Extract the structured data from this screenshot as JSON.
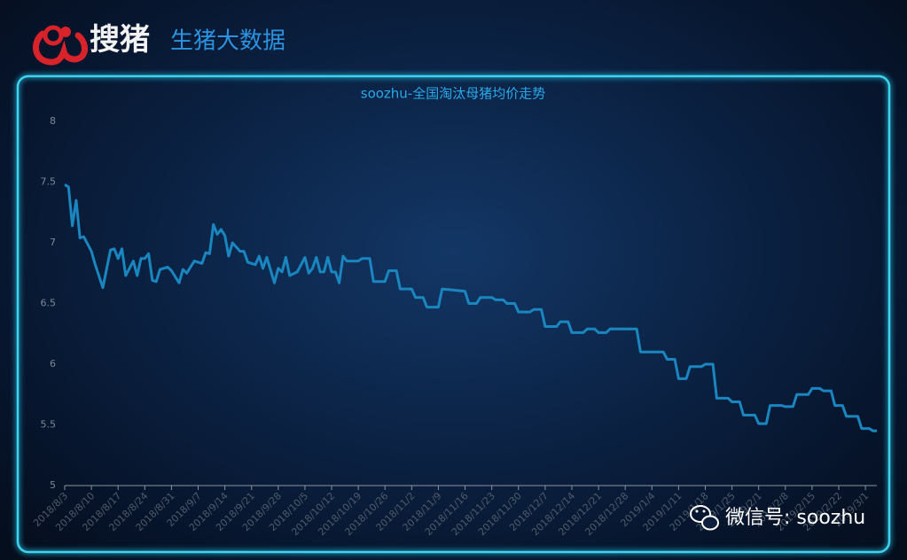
{
  "header": {
    "logo": "搜猪",
    "brand": "生猪大数据"
  },
  "watermark": "微信号: soozhu",
  "chart_data": {
    "type": "line",
    "title": "soozhu-全国淘汰母猪均价走势",
    "x": [
      "2018/8/3",
      "2018/8/4",
      "2018/8/5",
      "2018/8/6",
      "2018/8/7",
      "2018/8/8",
      "2018/8/10",
      "2018/8/11",
      "2018/8/13",
      "2018/8/15",
      "2018/8/16",
      "2018/8/17",
      "2018/8/18",
      "2018/8/19",
      "2018/8/21",
      "2018/8/22",
      "2018/8/23",
      "2018/8/24",
      "2018/8/25",
      "2018/8/26",
      "2018/8/27",
      "2018/8/28",
      "2018/8/30",
      "2018/8/31",
      "2018/9/2",
      "2018/9/3",
      "2018/9/4",
      "2018/9/6",
      "2018/9/7",
      "2018/9/8",
      "2018/9/9",
      "2018/9/10",
      "2018/9/11",
      "2018/9/12",
      "2018/9/13",
      "2018/9/14",
      "2018/9/15",
      "2018/9/16",
      "2018/9/18",
      "2018/9/19",
      "2018/9/20",
      "2018/9/22",
      "2018/9/23",
      "2018/9/24",
      "2018/9/25",
      "2018/9/27",
      "2018/9/28",
      "2018/9/29",
      "2018/9/30",
      "2018/10/1",
      "2018/10/3",
      "2018/10/5",
      "2018/10/6",
      "2018/10/7",
      "2018/10/8",
      "2018/10/9",
      "2018/10/10",
      "2018/10/11",
      "2018/10/12",
      "2018/10/13",
      "2018/10/14",
      "2018/10/15",
      "2018/10/16",
      "2018/10/19",
      "2018/10/20",
      "2018/10/22",
      "2018/10/23",
      "2018/10/26",
      "2018/10/27",
      "2018/10/29",
      "2018/10/30",
      "2018/11/2",
      "2018/11/3",
      "2018/11/5",
      "2018/11/6",
      "2018/11/9",
      "2018/11/10",
      "2018/11/13",
      "2018/11/16",
      "2018/11/17",
      "2018/11/19",
      "2018/11/20",
      "2018/11/23",
      "2018/11/24",
      "2018/11/26",
      "2018/11/27",
      "2018/11/29",
      "2018/11/30",
      "2018/12/3",
      "2018/12/4",
      "2018/12/6",
      "2018/12/7",
      "2018/12/10",
      "2018/12/11",
      "2018/12/13",
      "2018/12/14",
      "2018/12/17",
      "2018/12/18",
      "2018/12/20",
      "2018/12/21",
      "2018/12/23",
      "2018/12/24",
      "2018/12/31",
      "2019/1/1",
      "2019/1/7",
      "2019/1/8",
      "2019/1/10",
      "2019/1/11",
      "2019/1/13",
      "2019/1/14",
      "2019/1/17",
      "2019/1/18",
      "2019/1/20",
      "2019/1/21",
      "2019/1/24",
      "2019/1/25",
      "2019/1/27",
      "2019/1/28",
      "2019/1/31",
      "2019/2/1",
      "2019/2/3",
      "2019/2/4",
      "2019/2/7",
      "2019/2/8",
      "2019/2/10",
      "2019/2/11",
      "2019/2/14",
      "2019/2/15",
      "2019/2/17",
      "2019/2/18",
      "2019/2/20",
      "2019/2/21",
      "2019/2/23",
      "2019/2/24",
      "2019/2/27",
      "2019/2/28",
      "2019/3/2",
      "2019/3/3",
      "2019/3/4"
    ],
    "values": [
      7.48,
      7.46,
      7.14,
      7.35,
      7.04,
      7.05,
      6.93,
      6.82,
      6.63,
      6.94,
      6.95,
      6.87,
      6.95,
      6.73,
      6.85,
      6.73,
      6.87,
      6.87,
      6.91,
      6.69,
      6.68,
      6.78,
      6.8,
      6.77,
      6.67,
      6.78,
      6.75,
      6.85,
      6.84,
      6.83,
      6.92,
      6.91,
      7.15,
      7.07,
      7.11,
      7.06,
      6.89,
      7.0,
      6.93,
      6.93,
      6.84,
      6.82,
      6.89,
      6.79,
      6.88,
      6.67,
      6.79,
      6.76,
      6.88,
      6.73,
      6.76,
      6.88,
      6.75,
      6.79,
      6.88,
      6.76,
      6.76,
      6.88,
      6.76,
      6.76,
      6.67,
      6.89,
      6.85,
      6.85,
      6.87,
      6.87,
      6.68,
      6.68,
      6.77,
      6.77,
      6.62,
      6.62,
      6.55,
      6.55,
      6.47,
      6.47,
      6.62,
      6.61,
      6.6,
      6.5,
      6.5,
      6.55,
      6.55,
      6.53,
      6.53,
      6.5,
      6.5,
      6.43,
      6.43,
      6.45,
      6.45,
      6.31,
      6.31,
      6.35,
      6.35,
      6.26,
      6.26,
      6.29,
      6.29,
      6.26,
      6.26,
      6.29,
      6.29,
      6.1,
      6.1,
      6.04,
      6.04,
      5.88,
      5.88,
      5.98,
      5.98,
      6.0,
      6.0,
      5.72,
      5.72,
      5.69,
      5.69,
      5.58,
      5.58,
      5.51,
      5.51,
      5.66,
      5.66,
      5.65,
      5.65,
      5.75,
      5.75,
      5.8,
      5.8,
      5.78,
      5.78,
      5.66,
      5.66,
      5.57,
      5.57,
      5.47,
      5.47,
      5.45,
      5.45
    ],
    "color": "#1a86bf",
    "xlim": [
      "2018/8/3",
      "2019/3/4"
    ],
    "xticks": [
      "2018/8/3",
      "2018/8/10",
      "2018/8/17",
      "2018/8/24",
      "2018/8/31",
      "2018/9/7",
      "2018/9/14",
      "2018/9/21",
      "2018/9/28",
      "2018/10/5",
      "2018/10/12",
      "2018/10/19",
      "2018/10/26",
      "2018/11/2",
      "2018/11/9",
      "2018/11/16",
      "2018/11/23",
      "2018/11/30",
      "2018/12/7",
      "2018/12/14",
      "2018/12/21",
      "2018/12/28",
      "2019/1/4",
      "2019/1/11",
      "2019/1/18",
      "2019/1/25",
      "2019/2/1",
      "2019/2/8",
      "2019/2/15",
      "2019/2/22",
      "2019/3/1"
    ],
    "ylim": [
      5,
      8
    ],
    "yticks": [
      5,
      5.5,
      6,
      6.5,
      7,
      7.5,
      8
    ]
  }
}
